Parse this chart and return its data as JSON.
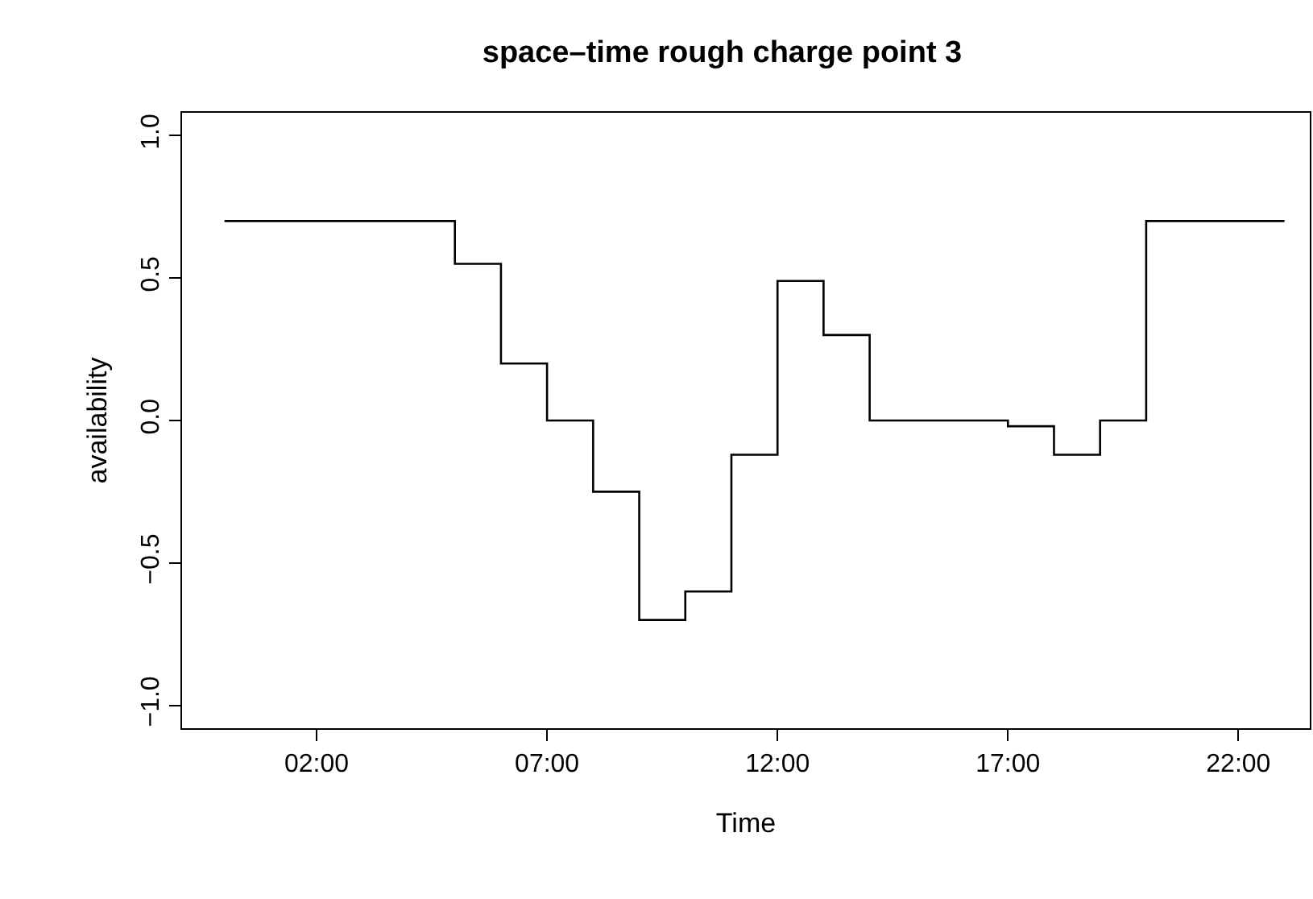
{
  "chart_data": {
    "type": "step",
    "title": "space–time rough charge point 3",
    "xlabel": "Time",
    "ylabel": "availability",
    "x": [
      0,
      1,
      2,
      3,
      4,
      5,
      6,
      7,
      8,
      9,
      10,
      11,
      12,
      13,
      14,
      15,
      16,
      17,
      18,
      19,
      20,
      21,
      22,
      23
    ],
    "series": [
      {
        "color": "#000000",
        "values": [
          0.7,
          0.7,
          0.7,
          0.7,
          0.7,
          0.55,
          0.2,
          0,
          -0.25,
          -0.7,
          -0.6,
          -0.12,
          0.49,
          0.3,
          0,
          0,
          0,
          -0.02,
          -0.12,
          0,
          0.7,
          0.7,
          0.7,
          0.7
        ]
      }
    ],
    "xlim": [
      -0.92,
      23.55
    ],
    "xticks": [
      {
        "value": 2,
        "label": "02:00"
      },
      {
        "value": 7,
        "label": "07:00"
      },
      {
        "value": 12,
        "label": "12:00"
      },
      {
        "value": 17,
        "label": "17:00"
      },
      {
        "value": 22,
        "label": "22:00"
      }
    ],
    "ylim": [
      -1.08,
      1.08
    ],
    "yticks": [
      {
        "value": -1,
        "label": "−1.0"
      },
      {
        "value": -0.5,
        "label": "−0.5"
      },
      {
        "value": 0,
        "label": "0.0"
      },
      {
        "value": 0.5,
        "label": "0.5"
      },
      {
        "value": 1,
        "label": "1.0"
      }
    ],
    "legend": false,
    "marker": "none",
    "line_style": "solid"
  }
}
